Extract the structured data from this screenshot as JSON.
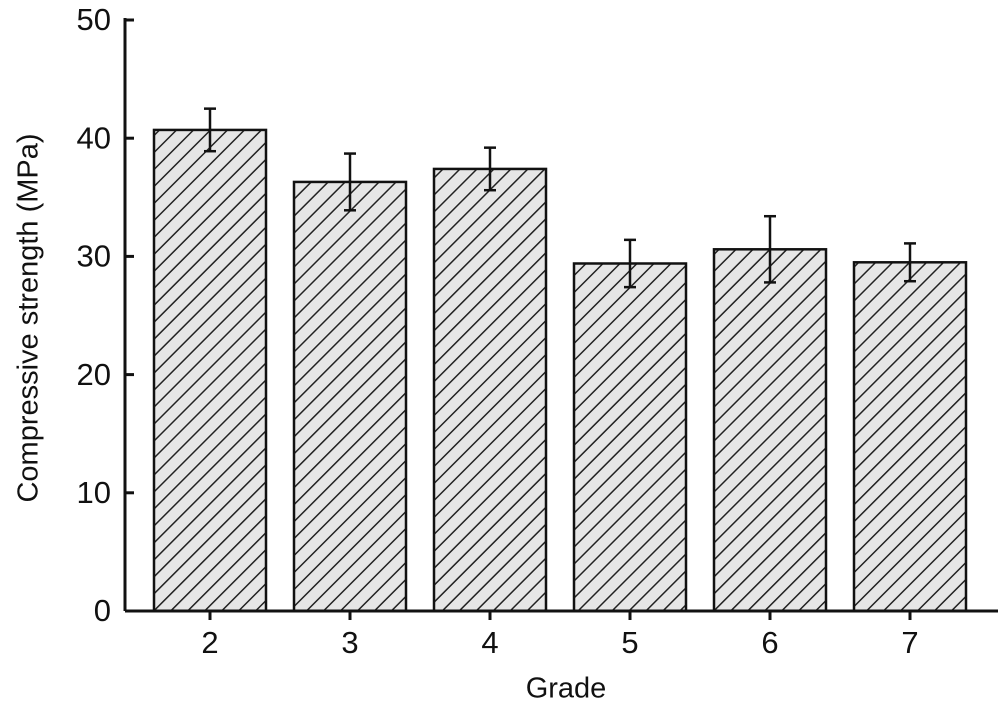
{
  "chart_data": {
    "type": "bar",
    "x_label": "Grade",
    "y_label": "Compressive strength (MPa)",
    "categories": [
      "2",
      "3",
      "4",
      "5",
      "6",
      "7"
    ],
    "values": [
      40.7,
      36.3,
      37.4,
      29.4,
      30.6,
      29.5
    ],
    "errors": [
      1.8,
      2.4,
      1.8,
      2.0,
      2.8,
      1.6
    ],
    "ylim": [
      0,
      50
    ],
    "yticks": [
      0,
      10,
      20,
      30,
      40,
      50
    ],
    "color": "#e6e6e6",
    "hatch": true
  }
}
